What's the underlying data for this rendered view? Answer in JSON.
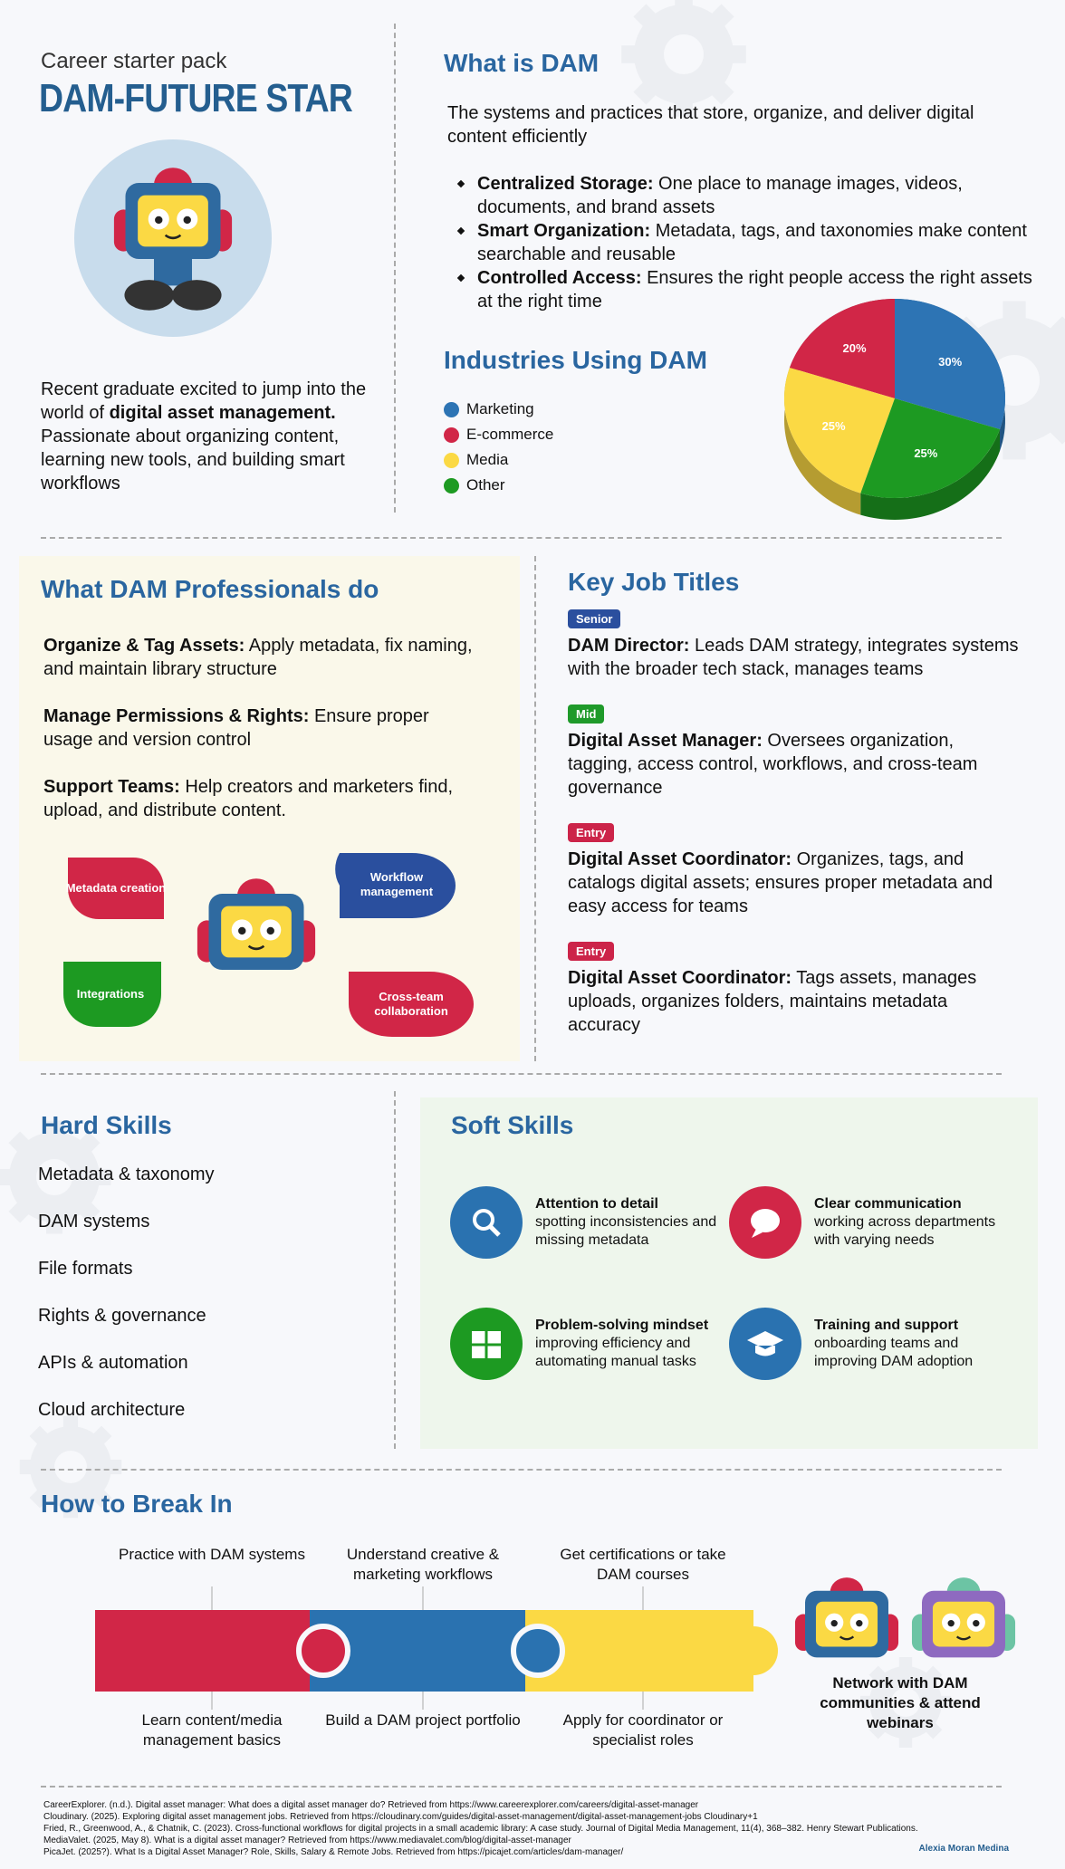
{
  "header": {
    "kicker": "Career starter pack",
    "title": "DAM-FUTURE STAR"
  },
  "intro": {
    "before": "Recent graduate excited to jump into the world of ",
    "bold": "digital asset management.",
    "after": " Passionate about organizing content, learning new tools, and building smart workflows"
  },
  "what_is": {
    "title": "What is DAM",
    "description": "The systems and practices that store, organize, and deliver digital content efficiently",
    "bullets": [
      {
        "term": "Centralized Storage:",
        "text": " One place to manage images, videos, documents, and brand assets"
      },
      {
        "term": "Smart Organization:",
        "text": " Metadata, tags, and taxonomies make content searchable and reusable"
      },
      {
        "term": "Controlled Access:",
        "text": " Ensures the right people access the right assets at the right time"
      }
    ]
  },
  "chart_data": {
    "type": "pie",
    "title": "Industries Using DAM",
    "categories": [
      "Marketing",
      "E-commerce",
      "Media",
      "Other"
    ],
    "values": [
      30,
      20,
      25,
      25
    ],
    "value_labels": [
      "30%",
      "20%",
      "25%",
      "25%"
    ],
    "colors": [
      "#2d74b4",
      "#d12647",
      "#fbd944",
      "#1d9a22"
    ]
  },
  "professionals": {
    "title": "What DAM Professionals do",
    "items": [
      {
        "term": "Organize & Tag Assets:",
        "text": " Apply metadata, fix naming, and maintain library structure"
      },
      {
        "term": "Manage Permissions & Rights:",
        "text": " Ensure proper usage and version control"
      },
      {
        "term": "Support Teams:",
        "text": " Help creators and marketers find, upload, and distribute content."
      }
    ],
    "bubbles": [
      "Metadata creation",
      "Workflow management",
      "Integrations",
      "Cross-team collaboration"
    ]
  },
  "job_titles": {
    "title": "Key Job Titles",
    "jobs": [
      {
        "level": "Senior",
        "role": "DAM Director:",
        "text": " Leads DAM strategy, integrates systems with the broader tech stack, manages teams"
      },
      {
        "level": "Mid",
        "role": "Digital Asset Manager:",
        "text": " Oversees organization, tagging, access control, workflows, and cross-team governance"
      },
      {
        "level": "Entry",
        "role": "Digital Asset Coordinator:",
        "text": " Organizes, tags, and catalogs digital assets; ensures proper metadata and easy access for teams"
      },
      {
        "level": "Entry",
        "role": "Digital Asset Coordinator:",
        "text": " Tags assets, manages uploads, organizes folders, maintains metadata accuracy"
      }
    ]
  },
  "hard_skills": {
    "title": "Hard Skills",
    "items": [
      "Metadata & taxonomy",
      "DAM systems",
      "File formats",
      "Rights & governance",
      "APIs & automation",
      "Cloud architecture"
    ]
  },
  "soft_skills": {
    "title": "Soft Skills",
    "items": [
      {
        "title": "Attention to detail",
        "text": "spotting inconsistencies and missing metadata"
      },
      {
        "title": "Clear communication",
        "text": "working across departments with varying needs"
      },
      {
        "title": "Problem-solving mindset",
        "text": "improving efficiency and automating manual tasks"
      },
      {
        "title": "Training and support",
        "text": "onboarding teams and improving DAM adoption"
      }
    ]
  },
  "break_in": {
    "title": "How to Break In",
    "steps_top": [
      "Practice with DAM systems",
      "Understand creative & marketing workflows",
      "Get certifications or take DAM courses"
    ],
    "steps_bottom": [
      "Learn content/media management basics",
      "Build a DAM project portfolio",
      "Apply for coordinator or specialist roles"
    ],
    "network": "Network with DAM communities & attend webinars"
  },
  "references": [
    "CareerExplorer. (n.d.). Digital asset manager: What does a digital asset manager do? Retrieved from https://www.careerexplorer.com/careers/digital-asset-manager",
    "Cloudinary. (2025). Exploring digital asset management jobs. Retrieved from https://cloudinary.com/guides/digital-asset-management/digital-asset-management-jobs Cloudinary+1",
    "Fried, R., Greenwood, A., & Chatnik, C. (2023). Cross-functional workflows for digital projects in a small academic library: A case study. Journal of Digital Media Management, 11(4), 368–382. Henry Stewart Publications.",
    "MediaValet. (2025, May 8). What is a digital asset manager? Retrieved from https://www.mediavalet.com/blog/digital-asset-manager",
    "PicaJet. (2025?). What Is a Digital Asset Manager? Role, Skills, Salary & Remote Jobs. Retrieved from https://picajet.com/articles/dam-manager/"
  ],
  "author": "Alexia Moran Medina"
}
